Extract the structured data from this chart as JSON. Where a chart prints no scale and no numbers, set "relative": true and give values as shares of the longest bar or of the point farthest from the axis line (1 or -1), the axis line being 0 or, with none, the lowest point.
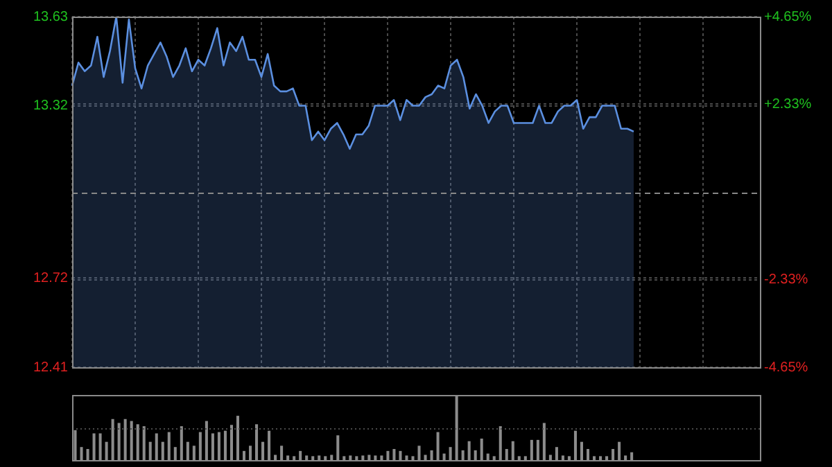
{
  "chart_data": [
    {
      "type": "area",
      "categories": [
        null,
        null,
        null,
        null,
        null,
        null,
        null,
        null,
        null,
        null,
        null,
        null,
        null,
        null,
        null,
        null,
        null,
        null,
        null,
        null,
        null,
        null,
        null,
        null,
        null,
        null,
        null,
        null,
        null,
        null,
        null,
        null,
        null,
        null,
        null,
        null,
        null,
        null,
        null,
        null,
        null,
        null,
        null,
        null,
        null,
        null,
        null,
        null,
        null,
        null,
        null,
        null,
        null,
        null,
        null,
        null,
        null,
        null,
        null,
        null,
        null,
        null,
        null,
        null,
        null,
        null,
        null,
        null,
        null,
        null,
        null,
        null,
        null,
        null,
        null,
        null,
        null,
        null,
        null,
        null,
        null,
        null,
        null,
        null,
        null,
        null,
        null,
        null,
        null,
        null,
        null,
        null,
        null,
        null,
        null,
        null,
        null,
        null,
        null,
        null,
        null,
        null,
        null,
        null,
        null,
        null,
        null,
        null,
        null,
        null
      ],
      "ylim": [
        12.41,
        13.63
      ],
      "yticks": [
        12.41,
        12.72,
        13.32,
        13.63
      ],
      "y2lim": [
        -4.65,
        4.65
      ],
      "y2ticks": [
        {
          "value": -4.65,
          "label": "-4.65%"
        },
        {
          "value": -2.33,
          "label": "-2.33%"
        },
        {
          "value": 2.33,
          "label": "+2.33%"
        },
        {
          "value": 4.65,
          "label": "+4.65%"
        }
      ],
      "tick_labels": "y",
      "grid": true,
      "legend": false,
      "ref_lines": [
        {
          "axis": "y",
          "value": 13.02,
          "line_style": "dashed",
          "color": "#888888"
        }
      ],
      "series": [
        {
          "color": "#5b8fe0",
          "values": [
            13.39,
            13.47,
            13.44,
            13.46,
            13.56,
            13.42,
            13.51,
            13.63,
            13.4,
            13.62,
            13.45,
            13.38,
            13.46,
            13.5,
            13.54,
            13.49,
            13.42,
            13.46,
            13.52,
            13.44,
            13.48,
            13.46,
            13.52,
            13.59,
            13.46,
            13.54,
            13.51,
            13.56,
            13.48,
            13.48,
            13.42,
            13.5,
            13.39,
            13.37,
            13.37,
            13.38,
            13.32,
            13.32,
            13.2,
            13.23,
            13.2,
            13.24,
            13.26,
            13.22,
            13.17,
            13.22,
            13.22,
            13.25,
            13.32,
            13.32,
            13.32,
            13.34,
            13.27,
            13.34,
            13.32,
            13.32,
            13.35,
            13.36,
            13.39,
            13.38,
            13.46,
            13.48,
            13.42,
            13.31,
            13.36,
            13.32,
            13.26,
            13.3,
            13.32,
            13.32,
            13.26,
            13.26,
            13.26,
            13.26,
            13.32,
            13.26,
            13.26,
            13.3,
            13.32,
            13.32,
            13.34,
            13.24,
            13.28,
            13.28,
            13.32,
            13.32,
            13.32,
            13.24,
            13.24,
            13.23,
            null,
            null,
            null,
            null,
            null,
            null,
            null,
            null,
            null,
            null,
            null,
            null,
            null,
            null,
            null,
            null,
            null,
            null,
            null,
            null
          ]
        }
      ]
    },
    {
      "type": "bar",
      "relative": true,
      "legend": false,
      "color": "#8c8c8c",
      "ref_lines": [
        {
          "axis": "y",
          "value": 0.5,
          "line_style": "dotted",
          "color": "#4a4a4a"
        }
      ],
      "categories": [
        null,
        null,
        null,
        null,
        null,
        null,
        null,
        null,
        null,
        null,
        null,
        null,
        null,
        null,
        null,
        null,
        null,
        null,
        null,
        null,
        null,
        null,
        null,
        null,
        null,
        null,
        null,
        null,
        null,
        null,
        null,
        null,
        null,
        null,
        null,
        null,
        null,
        null,
        null,
        null,
        null,
        null,
        null,
        null,
        null,
        null,
        null,
        null,
        null,
        null,
        null,
        null,
        null,
        null,
        null,
        null,
        null,
        null,
        null,
        null,
        null,
        null,
        null,
        null,
        null,
        null,
        null,
        null,
        null,
        null,
        null,
        null,
        null,
        null,
        null,
        null,
        null,
        null,
        null,
        null,
        null,
        null,
        null,
        null,
        null,
        null,
        null,
        null,
        null,
        null,
        null,
        null,
        null,
        null,
        null,
        null,
        null,
        null,
        null,
        null,
        null,
        null,
        null,
        null,
        null,
        null,
        null,
        null,
        null,
        null
      ],
      "values": [
        0.46,
        0.2,
        0.17,
        0.41,
        0.41,
        0.28,
        0.63,
        0.57,
        0.63,
        0.6,
        0.55,
        0.52,
        0.28,
        0.41,
        0.28,
        0.43,
        0.2,
        0.52,
        0.28,
        0.22,
        0.43,
        0.6,
        0.41,
        0.43,
        0.45,
        0.54,
        0.68,
        0.14,
        0.22,
        0.55,
        0.28,
        0.45,
        0.08,
        0.22,
        0.07,
        0.06,
        0.14,
        0.07,
        0.06,
        0.07,
        0.06,
        0.08,
        0.38,
        0.06,
        0.07,
        0.06,
        0.07,
        0.08,
        0.07,
        0.07,
        0.14,
        0.17,
        0.14,
        0.07,
        0.06,
        0.22,
        0.08,
        0.15,
        0.43,
        0.1,
        0.2,
        1.0,
        0.15,
        0.29,
        0.15,
        0.33,
        0.1,
        0.06,
        0.52,
        0.17,
        0.29,
        0.06,
        0.06,
        0.31,
        0.31,
        0.57,
        0.08,
        0.2,
        0.07,
        0.06,
        0.45,
        0.28,
        0.17,
        0.06,
        0.06,
        0.06,
        0.17,
        0.28,
        0.07,
        0.12,
        null,
        null,
        null,
        null,
        null,
        null,
        null,
        null,
        null,
        null,
        null,
        null,
        null,
        null,
        null,
        null,
        null,
        null,
        null,
        null
      ]
    }
  ]
}
